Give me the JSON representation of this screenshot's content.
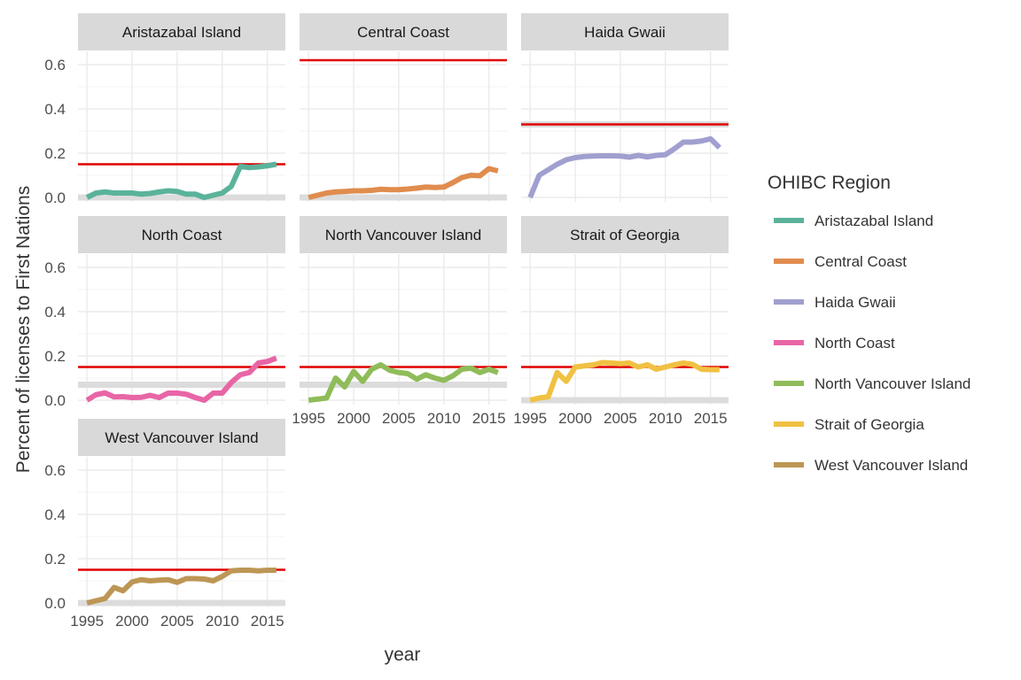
{
  "chart_data": {
    "type": "line",
    "facet_by": "OHIBC Region",
    "xlabel": "year",
    "ylabel": "Percent of licenses to First Nations",
    "x_ticks": [
      1995,
      2000,
      2005,
      2010,
      2015
    ],
    "y_ticks": [
      "0.0",
      "0.2",
      "0.4",
      "0.6"
    ],
    "xlim": [
      1994,
      2017
    ],
    "ylim": [
      -0.02,
      0.66
    ],
    "legend": {
      "title": "OHIBC Region",
      "position": "right"
    },
    "reference_line_color": "#e00000",
    "band_color": "#dcdcdc",
    "panels": [
      {
        "name": "Aristazabal Island",
        "color": "#5ab39a",
        "target": 0.15,
        "band": 0.0,
        "x": [
          1995,
          1996,
          1997,
          1998,
          1999,
          2000,
          2001,
          2002,
          2003,
          2004,
          2005,
          2006,
          2007,
          2008,
          2009,
          2010,
          2011,
          2012,
          2013,
          2014,
          2015,
          2016
        ],
        "y": [
          0.0,
          0.02,
          0.025,
          0.02,
          0.02,
          0.02,
          0.015,
          0.018,
          0.025,
          0.03,
          0.027,
          0.015,
          0.015,
          0.0,
          0.01,
          0.02,
          0.05,
          0.14,
          0.135,
          0.138,
          0.143,
          0.15
        ]
      },
      {
        "name": "Central Coast",
        "color": "#e08c4e",
        "target": 0.62,
        "band": 0.0,
        "x": [
          1995,
          1996,
          1997,
          1998,
          1999,
          2000,
          2001,
          2002,
          2003,
          2004,
          2005,
          2006,
          2007,
          2008,
          2009,
          2010,
          2011,
          2012,
          2013,
          2014,
          2015,
          2016
        ],
        "y": [
          0.0,
          0.01,
          0.02,
          0.025,
          0.027,
          0.03,
          0.03,
          0.032,
          0.037,
          0.035,
          0.035,
          0.038,
          0.042,
          0.047,
          0.045,
          0.047,
          0.067,
          0.09,
          0.1,
          0.098,
          0.13,
          0.12
        ]
      },
      {
        "name": "Haida Gwaii",
        "color": "#a09fcf",
        "target": 0.33,
        "band": 0.33,
        "x": [
          1995,
          1996,
          1997,
          1998,
          1999,
          2000,
          2001,
          2002,
          2003,
          2004,
          2005,
          2006,
          2007,
          2008,
          2009,
          2010,
          2011,
          2012,
          2013,
          2014,
          2015,
          2016
        ],
        "y": [
          0.0,
          0.1,
          0.125,
          0.15,
          0.17,
          0.18,
          0.185,
          0.187,
          0.188,
          0.188,
          0.187,
          0.182,
          0.19,
          0.183,
          0.19,
          0.193,
          0.22,
          0.25,
          0.25,
          0.255,
          0.265,
          0.225
        ]
      },
      {
        "name": "North Coast",
        "color": "#e865a6",
        "target": 0.15,
        "band": 0.07,
        "x": [
          1995,
          1996,
          1997,
          1998,
          1999,
          2000,
          2001,
          2002,
          2003,
          2004,
          2005,
          2006,
          2007,
          2008,
          2009,
          2010,
          2011,
          2012,
          2013,
          2014,
          2015,
          2016
        ],
        "y": [
          0.0,
          0.025,
          0.033,
          0.015,
          0.016,
          0.012,
          0.013,
          0.022,
          0.012,
          0.032,
          0.032,
          0.027,
          0.012,
          0.0,
          0.032,
          0.032,
          0.08,
          0.115,
          0.125,
          0.168,
          0.175,
          0.19
        ]
      },
      {
        "name": "North Vancouver Island",
        "color": "#8fbc59",
        "target": 0.15,
        "band": 0.07,
        "x": [
          1995,
          1996,
          1997,
          1998,
          1999,
          2000,
          2001,
          2002,
          2003,
          2004,
          2005,
          2006,
          2007,
          2008,
          2009,
          2010,
          2011,
          2012,
          2013,
          2014,
          2015,
          2016
        ],
        "y": [
          0.0,
          0.005,
          0.01,
          0.1,
          0.06,
          0.13,
          0.085,
          0.14,
          0.16,
          0.135,
          0.125,
          0.12,
          0.095,
          0.115,
          0.1,
          0.09,
          0.11,
          0.14,
          0.145,
          0.125,
          0.14,
          0.125
        ]
      },
      {
        "name": "Strait of Georgia",
        "color": "#f0c142",
        "target": 0.15,
        "band": 0.0,
        "x": [
          1995,
          1996,
          1997,
          1998,
          1999,
          2000,
          2001,
          2002,
          2003,
          2004,
          2005,
          2006,
          2007,
          2008,
          2009,
          2010,
          2011,
          2012,
          2013,
          2014,
          2015,
          2016
        ],
        "y": [
          0.0,
          0.01,
          0.015,
          0.125,
          0.085,
          0.15,
          0.155,
          0.16,
          0.17,
          0.168,
          0.165,
          0.168,
          0.15,
          0.16,
          0.14,
          0.15,
          0.16,
          0.168,
          0.162,
          0.14,
          0.138,
          0.138
        ]
      },
      {
        "name": "West Vancouver Island",
        "color": "#bd9655",
        "target": 0.15,
        "band": 0.0,
        "x": [
          1995,
          1996,
          1997,
          1998,
          1999,
          2000,
          2001,
          2002,
          2003,
          2004,
          2005,
          2006,
          2007,
          2008,
          2009,
          2010,
          2011,
          2012,
          2013,
          2014,
          2015,
          2016
        ],
        "y": [
          0.0,
          0.01,
          0.02,
          0.07,
          0.055,
          0.095,
          0.105,
          0.1,
          0.103,
          0.105,
          0.093,
          0.11,
          0.11,
          0.108,
          0.1,
          0.12,
          0.145,
          0.148,
          0.148,
          0.145,
          0.148,
          0.148
        ]
      }
    ]
  }
}
